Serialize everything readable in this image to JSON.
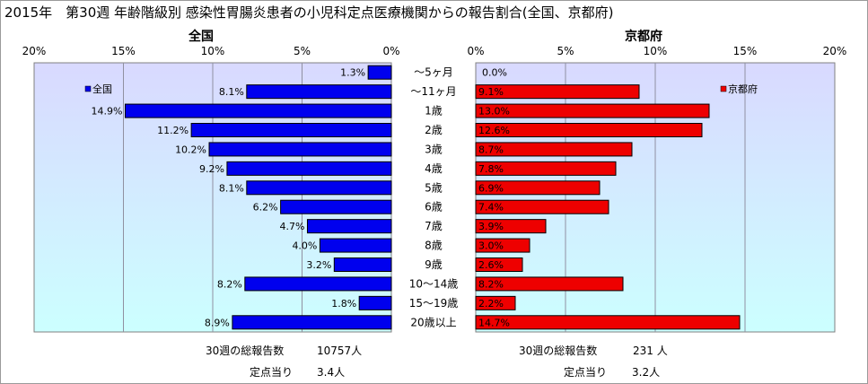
{
  "title": "2015年　第30週 年齢階級別 感染性胃腸炎患者の小児科定点医療機関からの報告割合(全国、京都府)",
  "colors": {
    "national": "#0000ee",
    "kyoto": "#ee0000",
    "plot_bg_top": "#d9d9ff",
    "plot_bg_bottom": "#ccffff"
  },
  "chart_data": [
    {
      "type": "bar",
      "title": "全国",
      "orientation": "horizontal",
      "direction": "right-to-left",
      "categories": [
        "～5ヶ月",
        "～11ヶ月",
        "1歳",
        "2歳",
        "3歳",
        "4歳",
        "5歳",
        "6歳",
        "7歳",
        "8歳",
        "9歳",
        "10～14歳",
        "15～19歳",
        "20歳以上"
      ],
      "series": [
        {
          "name": "全国",
          "values": [
            1.3,
            8.1,
            14.9,
            11.2,
            10.2,
            9.2,
            8.1,
            6.2,
            4.7,
            4.0,
            3.2,
            8.2,
            1.8,
            8.9
          ]
        }
      ],
      "xlim": [
        0,
        20
      ],
      "ticks": [
        "20%",
        "15%",
        "10%",
        "5%",
        "0%"
      ],
      "legend": "top-left",
      "grid": true
    },
    {
      "type": "bar",
      "title": "京都府",
      "orientation": "horizontal",
      "direction": "left-to-right",
      "categories": [
        "～5ヶ月",
        "～11ヶ月",
        "1歳",
        "2歳",
        "3歳",
        "4歳",
        "5歳",
        "6歳",
        "7歳",
        "8歳",
        "9歳",
        "10～14歳",
        "15～19歳",
        "20歳以上"
      ],
      "series": [
        {
          "name": "京都府",
          "values": [
            0.0,
            9.1,
            13.0,
            12.6,
            8.7,
            7.8,
            6.9,
            7.4,
            3.9,
            3.0,
            2.6,
            8.2,
            2.2,
            14.7
          ]
        }
      ],
      "xlim": [
        0,
        20
      ],
      "ticks": [
        "0%",
        "5%",
        "10%",
        "15%",
        "20%"
      ],
      "legend": "top-right",
      "grid": true
    }
  ],
  "stats": {
    "national": {
      "reports_label": "30週の総報告数",
      "reports_value": "10757人",
      "per_site_label": "定点当り",
      "per_site_value": "3.4人"
    },
    "kyoto": {
      "reports_label": "30週の総報告数",
      "reports_value": "231 人",
      "per_site_label": "定点当り",
      "per_site_value": "3.2人"
    }
  }
}
